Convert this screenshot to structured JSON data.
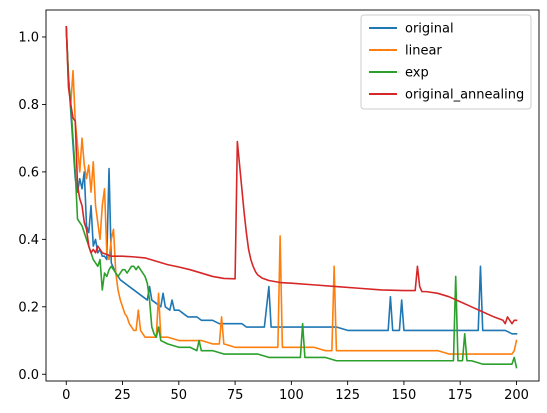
{
  "chart_data": {
    "type": "line",
    "title": "",
    "xlabel": "",
    "ylabel": "",
    "xlim": [
      -9,
      210
    ],
    "ylim": [
      -0.02,
      1.08
    ],
    "x_ticks": [
      0,
      25,
      50,
      75,
      100,
      125,
      150,
      175,
      200
    ],
    "x_tick_labels": [
      "0",
      "25",
      "50",
      "75",
      "100",
      "125",
      "150",
      "175",
      "200"
    ],
    "y_ticks": [
      0.0,
      0.2,
      0.4,
      0.6,
      0.8,
      1.0
    ],
    "y_tick_labels": [
      "0.0",
      "0.2",
      "0.4",
      "0.6",
      "0.8",
      "1.0"
    ],
    "grid": false,
    "legend_position": "top-right",
    "series": [
      {
        "name": "original",
        "color": "#1f77b4",
        "points": [
          [
            0,
            1.03
          ],
          [
            1,
            0.88
          ],
          [
            2,
            0.78
          ],
          [
            3,
            0.68
          ],
          [
            4,
            0.58
          ],
          [
            5,
            0.54
          ],
          [
            6,
            0.58
          ],
          [
            7,
            0.55
          ],
          [
            8,
            0.6
          ],
          [
            9,
            0.44
          ],
          [
            10,
            0.42
          ],
          [
            11,
            0.5
          ],
          [
            12,
            0.38
          ],
          [
            13,
            0.4
          ],
          [
            14,
            0.36
          ],
          [
            15,
            0.37
          ],
          [
            16,
            0.35
          ],
          [
            17,
            0.35
          ],
          [
            18,
            0.34
          ],
          [
            19,
            0.61
          ],
          [
            20,
            0.33
          ],
          [
            22,
            0.3
          ],
          [
            24,
            0.28
          ],
          [
            26,
            0.27
          ],
          [
            28,
            0.26
          ],
          [
            30,
            0.25
          ],
          [
            32,
            0.24
          ],
          [
            34,
            0.23
          ],
          [
            36,
            0.22
          ],
          [
            37,
            0.26
          ],
          [
            38,
            0.22
          ],
          [
            40,
            0.21
          ],
          [
            42,
            0.2
          ],
          [
            43,
            0.24
          ],
          [
            44,
            0.2
          ],
          [
            46,
            0.19
          ],
          [
            47,
            0.22
          ],
          [
            48,
            0.19
          ],
          [
            50,
            0.19
          ],
          [
            52,
            0.18
          ],
          [
            54,
            0.17
          ],
          [
            56,
            0.17
          ],
          [
            58,
            0.17
          ],
          [
            60,
            0.16
          ],
          [
            62,
            0.16
          ],
          [
            65,
            0.16
          ],
          [
            68,
            0.15
          ],
          [
            70,
            0.15
          ],
          [
            72,
            0.15
          ],
          [
            75,
            0.15
          ],
          [
            78,
            0.15
          ],
          [
            80,
            0.14
          ],
          [
            85,
            0.14
          ],
          [
            88,
            0.14
          ],
          [
            90,
            0.26
          ],
          [
            91,
            0.14
          ],
          [
            95,
            0.14
          ],
          [
            100,
            0.14
          ],
          [
            105,
            0.14
          ],
          [
            110,
            0.14
          ],
          [
            115,
            0.14
          ],
          [
            120,
            0.14
          ],
          [
            125,
            0.13
          ],
          [
            130,
            0.13
          ],
          [
            135,
            0.13
          ],
          [
            140,
            0.13
          ],
          [
            143,
            0.13
          ],
          [
            144,
            0.23
          ],
          [
            145,
            0.13
          ],
          [
            148,
            0.13
          ],
          [
            149,
            0.22
          ],
          [
            150,
            0.13
          ],
          [
            155,
            0.13
          ],
          [
            160,
            0.13
          ],
          [
            165,
            0.13
          ],
          [
            170,
            0.13
          ],
          [
            175,
            0.13
          ],
          [
            180,
            0.13
          ],
          [
            183,
            0.13
          ],
          [
            184,
            0.32
          ],
          [
            185,
            0.13
          ],
          [
            190,
            0.13
          ],
          [
            195,
            0.13
          ],
          [
            198,
            0.12
          ],
          [
            200,
            0.12
          ]
        ]
      },
      {
        "name": "linear",
        "color": "#ff7f0e",
        "points": [
          [
            0,
            1.03
          ],
          [
            1,
            0.86
          ],
          [
            2,
            0.8
          ],
          [
            3,
            0.9
          ],
          [
            4,
            0.75
          ],
          [
            5,
            0.68
          ],
          [
            6,
            0.6
          ],
          [
            7,
            0.7
          ],
          [
            8,
            0.62
          ],
          [
            9,
            0.58
          ],
          [
            10,
            0.62
          ],
          [
            11,
            0.54
          ],
          [
            12,
            0.63
          ],
          [
            13,
            0.5
          ],
          [
            14,
            0.45
          ],
          [
            15,
            0.4
          ],
          [
            16,
            0.5
          ],
          [
            17,
            0.55
          ],
          [
            18,
            0.36
          ],
          [
            19,
            0.34
          ],
          [
            20,
            0.4
          ],
          [
            21,
            0.43
          ],
          [
            22,
            0.3
          ],
          [
            23,
            0.25
          ],
          [
            24,
            0.22
          ],
          [
            25,
            0.2
          ],
          [
            26,
            0.18
          ],
          [
            27,
            0.17
          ],
          [
            28,
            0.15
          ],
          [
            29,
            0.14
          ],
          [
            30,
            0.13
          ],
          [
            31,
            0.13
          ],
          [
            32,
            0.19
          ],
          [
            33,
            0.13
          ],
          [
            34,
            0.12
          ],
          [
            35,
            0.11
          ],
          [
            40,
            0.11
          ],
          [
            41,
            0.24
          ],
          [
            42,
            0.11
          ],
          [
            45,
            0.11
          ],
          [
            50,
            0.1
          ],
          [
            55,
            0.1
          ],
          [
            60,
            0.1
          ],
          [
            65,
            0.09
          ],
          [
            68,
            0.09
          ],
          [
            69,
            0.17
          ],
          [
            70,
            0.09
          ],
          [
            75,
            0.08
          ],
          [
            80,
            0.08
          ],
          [
            85,
            0.08
          ],
          [
            90,
            0.08
          ],
          [
            94,
            0.08
          ],
          [
            95,
            0.41
          ],
          [
            96,
            0.08
          ],
          [
            100,
            0.08
          ],
          [
            105,
            0.08
          ],
          [
            110,
            0.08
          ],
          [
            115,
            0.07
          ],
          [
            118,
            0.07
          ],
          [
            119,
            0.32
          ],
          [
            120,
            0.07
          ],
          [
            125,
            0.07
          ],
          [
            130,
            0.07
          ],
          [
            135,
            0.07
          ],
          [
            140,
            0.07
          ],
          [
            145,
            0.07
          ],
          [
            150,
            0.07
          ],
          [
            155,
            0.07
          ],
          [
            160,
            0.07
          ],
          [
            165,
            0.07
          ],
          [
            170,
            0.06
          ],
          [
            175,
            0.06
          ],
          [
            180,
            0.06
          ],
          [
            185,
            0.06
          ],
          [
            190,
            0.06
          ],
          [
            195,
            0.06
          ],
          [
            198,
            0.06
          ],
          [
            199,
            0.07
          ],
          [
            200,
            0.1
          ]
        ]
      },
      {
        "name": "exp",
        "color": "#2ca02c",
        "points": [
          [
            0,
            1.03
          ],
          [
            1,
            0.88
          ],
          [
            2,
            0.8
          ],
          [
            3,
            0.7
          ],
          [
            4,
            0.6
          ],
          [
            5,
            0.46
          ],
          [
            6,
            0.45
          ],
          [
            7,
            0.44
          ],
          [
            8,
            0.42
          ],
          [
            9,
            0.4
          ],
          [
            10,
            0.38
          ],
          [
            11,
            0.36
          ],
          [
            12,
            0.34
          ],
          [
            13,
            0.33
          ],
          [
            14,
            0.32
          ],
          [
            15,
            0.34
          ],
          [
            16,
            0.25
          ],
          [
            17,
            0.3
          ],
          [
            18,
            0.29
          ],
          [
            19,
            0.31
          ],
          [
            20,
            0.32
          ],
          [
            21,
            0.31
          ],
          [
            22,
            0.3
          ],
          [
            23,
            0.29
          ],
          [
            24,
            0.3
          ],
          [
            25,
            0.31
          ],
          [
            26,
            0.31
          ],
          [
            27,
            0.3
          ],
          [
            28,
            0.31
          ],
          [
            29,
            0.32
          ],
          [
            30,
            0.32
          ],
          [
            31,
            0.31
          ],
          [
            32,
            0.32
          ],
          [
            33,
            0.31
          ],
          [
            34,
            0.3
          ],
          [
            35,
            0.29
          ],
          [
            36,
            0.27
          ],
          [
            37,
            0.22
          ],
          [
            38,
            0.14
          ],
          [
            39,
            0.12
          ],
          [
            40,
            0.11
          ],
          [
            41,
            0.14
          ],
          [
            42,
            0.1
          ],
          [
            45,
            0.09
          ],
          [
            50,
            0.08
          ],
          [
            55,
            0.08
          ],
          [
            58,
            0.07
          ],
          [
            59,
            0.1
          ],
          [
            60,
            0.07
          ],
          [
            65,
            0.07
          ],
          [
            70,
            0.06
          ],
          [
            75,
            0.06
          ],
          [
            80,
            0.06
          ],
          [
            85,
            0.06
          ],
          [
            90,
            0.05
          ],
          [
            95,
            0.05
          ],
          [
            100,
            0.05
          ],
          [
            104,
            0.05
          ],
          [
            105,
            0.15
          ],
          [
            106,
            0.05
          ],
          [
            110,
            0.05
          ],
          [
            115,
            0.05
          ],
          [
            120,
            0.04
          ],
          [
            125,
            0.04
          ],
          [
            130,
            0.04
          ],
          [
            135,
            0.04
          ],
          [
            140,
            0.04
          ],
          [
            145,
            0.04
          ],
          [
            150,
            0.04
          ],
          [
            155,
            0.04
          ],
          [
            160,
            0.04
          ],
          [
            165,
            0.04
          ],
          [
            170,
            0.04
          ],
          [
            172,
            0.04
          ],
          [
            173,
            0.29
          ],
          [
            174,
            0.04
          ],
          [
            176,
            0.04
          ],
          [
            177,
            0.12
          ],
          [
            178,
            0.04
          ],
          [
            180,
            0.04
          ],
          [
            185,
            0.03
          ],
          [
            190,
            0.03
          ],
          [
            195,
            0.03
          ],
          [
            198,
            0.03
          ],
          [
            199,
            0.05
          ],
          [
            200,
            0.02
          ]
        ]
      },
      {
        "name": "original_annealing",
        "color": "#d62728",
        "points": [
          [
            0,
            1.03
          ],
          [
            1,
            0.85
          ],
          [
            2,
            0.8
          ],
          [
            3,
            0.76
          ],
          [
            4,
            0.75
          ],
          [
            5,
            0.56
          ],
          [
            6,
            0.52
          ],
          [
            7,
            0.5
          ],
          [
            8,
            0.45
          ],
          [
            9,
            0.43
          ],
          [
            10,
            0.38
          ],
          [
            11,
            0.36
          ],
          [
            12,
            0.37
          ],
          [
            13,
            0.36
          ],
          [
            14,
            0.38
          ],
          [
            15,
            0.37
          ],
          [
            16,
            0.36
          ],
          [
            18,
            0.355
          ],
          [
            20,
            0.35
          ],
          [
            25,
            0.35
          ],
          [
            30,
            0.348
          ],
          [
            35,
            0.345
          ],
          [
            40,
            0.335
          ],
          [
            45,
            0.325
          ],
          [
            50,
            0.318
          ],
          [
            55,
            0.31
          ],
          [
            60,
            0.3
          ],
          [
            65,
            0.29
          ],
          [
            70,
            0.284
          ],
          [
            75,
            0.283
          ],
          [
            76,
            0.69
          ],
          [
            77,
            0.62
          ],
          [
            78,
            0.55
          ],
          [
            79,
            0.48
          ],
          [
            80,
            0.42
          ],
          [
            81,
            0.37
          ],
          [
            82,
            0.34
          ],
          [
            83,
            0.32
          ],
          [
            84,
            0.305
          ],
          [
            85,
            0.295
          ],
          [
            87,
            0.285
          ],
          [
            90,
            0.278
          ],
          [
            95,
            0.272
          ],
          [
            100,
            0.27
          ],
          [
            110,
            0.265
          ],
          [
            120,
            0.26
          ],
          [
            130,
            0.255
          ],
          [
            140,
            0.25
          ],
          [
            150,
            0.248
          ],
          [
            155,
            0.248
          ],
          [
            156,
            0.32
          ],
          [
            157,
            0.26
          ],
          [
            158,
            0.245
          ],
          [
            160,
            0.245
          ],
          [
            165,
            0.24
          ],
          [
            170,
            0.23
          ],
          [
            175,
            0.215
          ],
          [
            180,
            0.2
          ],
          [
            185,
            0.185
          ],
          [
            190,
            0.17
          ],
          [
            194,
            0.16
          ],
          [
            195,
            0.15
          ],
          [
            196,
            0.17
          ],
          [
            197,
            0.16
          ],
          [
            198,
            0.15
          ],
          [
            199,
            0.16
          ],
          [
            200,
            0.16
          ]
        ]
      }
    ]
  }
}
